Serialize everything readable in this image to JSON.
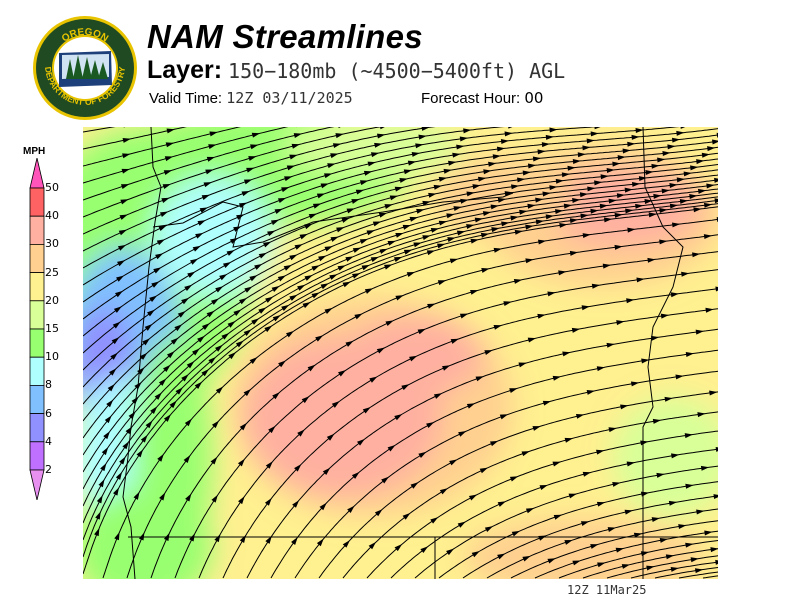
{
  "logo": {
    "top_text": "OREGON",
    "bottom_text": "DEPARTMENT OF FORESTRY"
  },
  "header": {
    "title": "NAM Streamlines",
    "layer_label": "Layer:",
    "layer_value": "150−180mb (~4500−5400ft) AGL",
    "valid_label": "Valid Time:",
    "valid_value": "12Z 03/11/2025",
    "forecast_label": "Forecast Hour:",
    "forecast_value": "00"
  },
  "legend": {
    "unit": "MPH",
    "ticks": [
      "50",
      "40",
      "30",
      "25",
      "20",
      "15",
      "10",
      "8",
      "6",
      "4",
      "2"
    ],
    "colors": {
      "above": "#ff55bb",
      "40-50": "#ff6262",
      "30-40": "#ffb0a0",
      "25-30": "#ffd090",
      "20-25": "#fff090",
      "15-20": "#d8ff98",
      "10-15": "#98ff70",
      "8-10": "#b0ffff",
      "6-8": "#80c0ff",
      "4-6": "#9090ff",
      "2-4": "#c070ff",
      "below": "#e890f0"
    }
  },
  "map": {
    "stamp": "12Z 11Mar25"
  }
}
